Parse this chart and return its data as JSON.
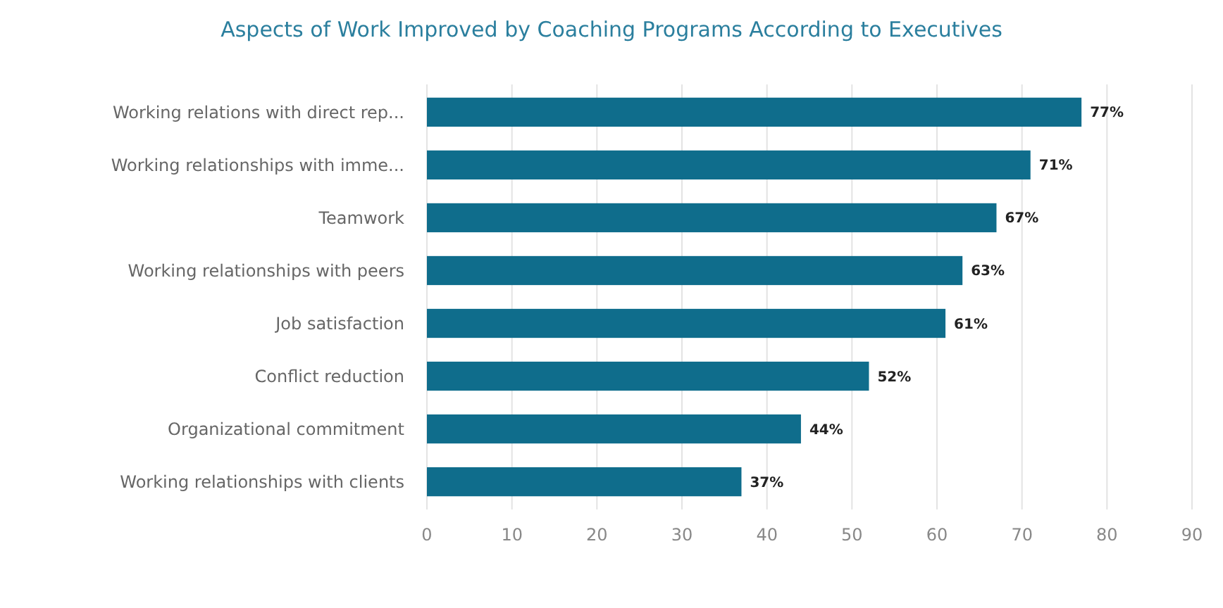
{
  "chart_data": {
    "type": "bar",
    "orientation": "horizontal",
    "title": "Aspects of Work Improved by Coaching Programs According to Executives",
    "categories": [
      "Working relations with direct rep...",
      "Working relationships with imme...",
      "Teamwork",
      "Working relationships with peers",
      "Job satisfaction",
      "Conflict reduction",
      "Organizational commitment",
      "Working relationships with clients"
    ],
    "values": [
      77,
      71,
      67,
      63,
      61,
      52,
      44,
      37
    ],
    "value_labels": [
      "77%",
      "71%",
      "67%",
      "63%",
      "61%",
      "52%",
      "44%",
      "37%"
    ],
    "color": "#0f6d8c",
    "xlim": [
      0,
      90
    ],
    "xticks": [
      0,
      10,
      20,
      30,
      40,
      50,
      60,
      70,
      80,
      90
    ],
    "grid": "x"
  }
}
